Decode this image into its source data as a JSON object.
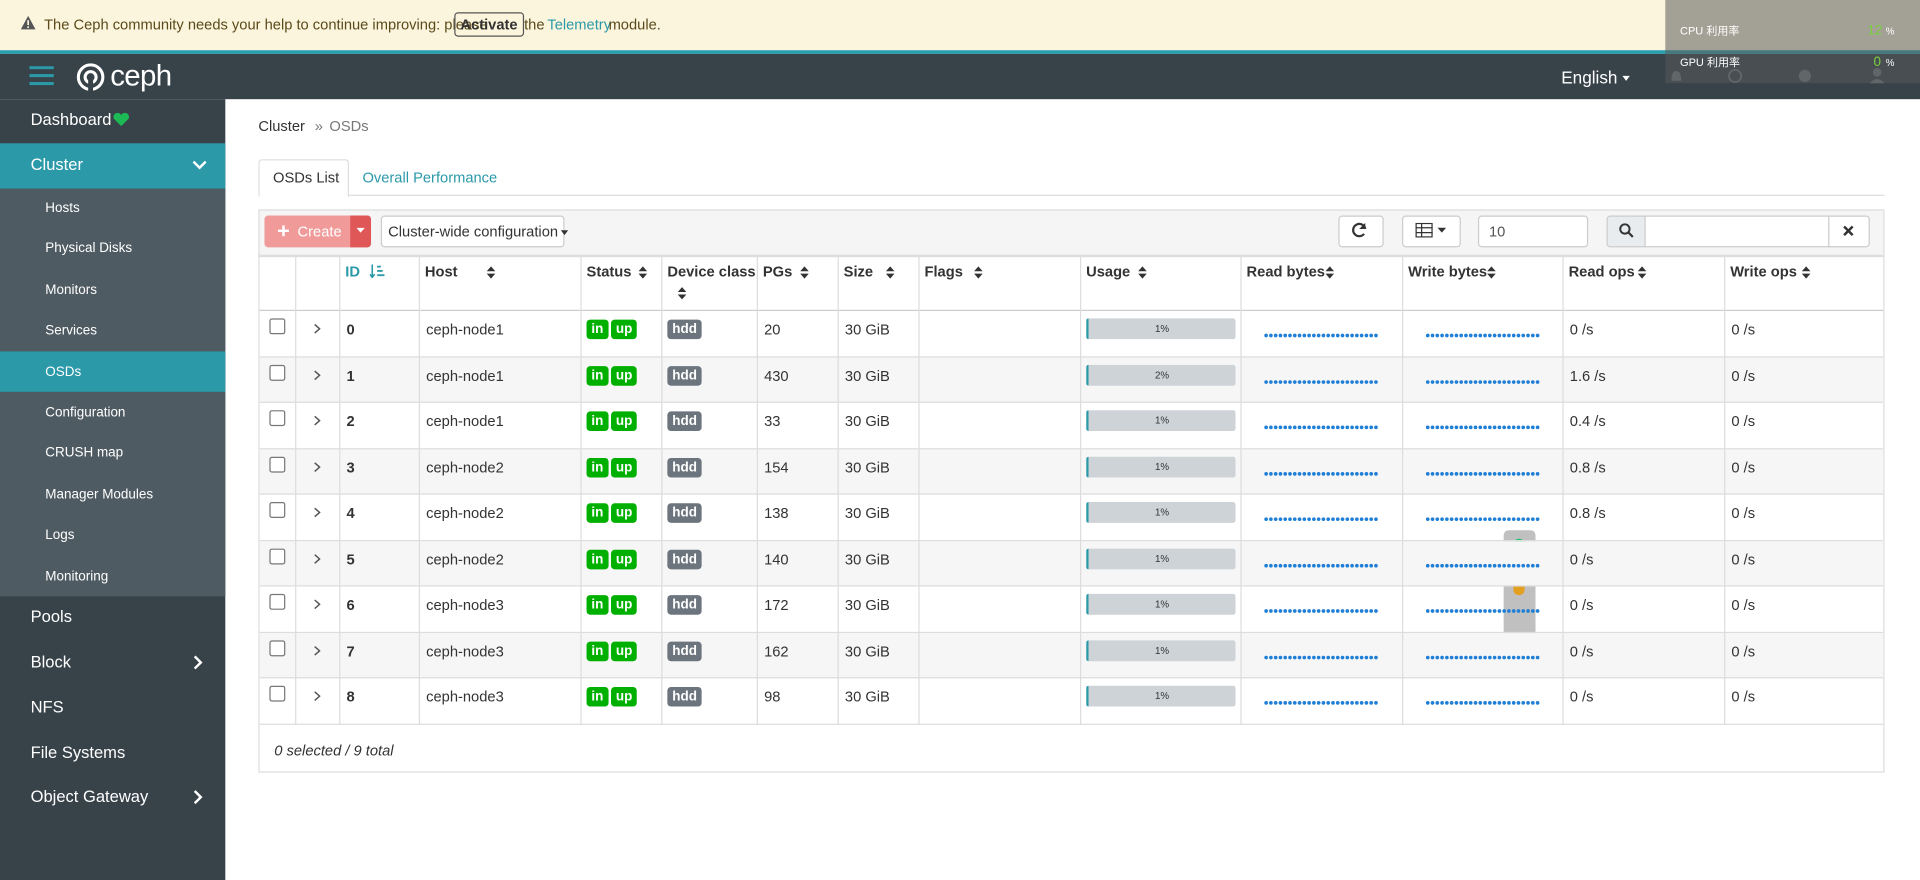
{
  "banner": {
    "text_before": "The Ceph community needs your help to continue improving: please",
    "button": "Activate",
    "text_middle": "the",
    "link": "Telemetry",
    "text_after": "module."
  },
  "overlay": {
    "cpu_label": "CPU 利用率",
    "cpu_value": "12",
    "cpu_unit": "%",
    "gpu_label": "GPU 利用率",
    "gpu_value": "0",
    "gpu_unit": "%"
  },
  "navbar": {
    "logo": "ceph",
    "language": "English"
  },
  "sidebar": {
    "top": [
      "Dashboard",
      "Cluster"
    ],
    "cluster_children": [
      "Hosts",
      "Physical Disks",
      "Monitors",
      "Services",
      "OSDs",
      "Configuration",
      "CRUSH map",
      "Manager Modules",
      "Logs",
      "Monitoring"
    ],
    "bottom": [
      "Pools",
      "Block",
      "NFS",
      "File Systems",
      "Object Gateway"
    ]
  },
  "breadcrumb": {
    "items": [
      "Cluster",
      "OSDs"
    ],
    "separator": "»"
  },
  "tabs": [
    "OSDs List",
    "Overall Performance"
  ],
  "toolbar": {
    "create": "Create",
    "config": "Cluster-wide configuration",
    "page_size": "10"
  },
  "table": {
    "columns": [
      "ID",
      "Host",
      "Status",
      "Device class",
      "PGs",
      "Size",
      "Flags",
      "Usage",
      "Read bytes",
      "Write bytes",
      "Read ops",
      "Write ops"
    ],
    "rows": [
      {
        "id": 0,
        "host": "ceph-node1",
        "in": "in",
        "up": "up",
        "device_class": "hdd",
        "pgs": 20,
        "size": "30 GiB",
        "usage": "1%",
        "read_ops": "0 /s",
        "write_ops": "0 /s"
      },
      {
        "id": 1,
        "host": "ceph-node1",
        "in": "in",
        "up": "up",
        "device_class": "hdd",
        "pgs": 430,
        "size": "30 GiB",
        "usage": "2%",
        "read_ops": "1.6 /s",
        "write_ops": "0 /s"
      },
      {
        "id": 2,
        "host": "ceph-node1",
        "in": "in",
        "up": "up",
        "device_class": "hdd",
        "pgs": 33,
        "size": "30 GiB",
        "usage": "1%",
        "read_ops": "0.4 /s",
        "write_ops": "0 /s"
      },
      {
        "id": 3,
        "host": "ceph-node2",
        "in": "in",
        "up": "up",
        "device_class": "hdd",
        "pgs": 154,
        "size": "30 GiB",
        "usage": "1%",
        "read_ops": "0.8 /s",
        "write_ops": "0 /s"
      },
      {
        "id": 4,
        "host": "ceph-node2",
        "in": "in",
        "up": "up",
        "device_class": "hdd",
        "pgs": 138,
        "size": "30 GiB",
        "usage": "1%",
        "read_ops": "0.8 /s",
        "write_ops": "0 /s"
      },
      {
        "id": 5,
        "host": "ceph-node2",
        "in": "in",
        "up": "up",
        "device_class": "hdd",
        "pgs": 140,
        "size": "30 GiB",
        "usage": "1%",
        "read_ops": "0 /s",
        "write_ops": "0 /s"
      },
      {
        "id": 6,
        "host": "ceph-node3",
        "in": "in",
        "up": "up",
        "device_class": "hdd",
        "pgs": 172,
        "size": "30 GiB",
        "usage": "1%",
        "read_ops": "0 /s",
        "write_ops": "0 /s"
      },
      {
        "id": 7,
        "host": "ceph-node3",
        "in": "in",
        "up": "up",
        "device_class": "hdd",
        "pgs": 162,
        "size": "30 GiB",
        "usage": "1%",
        "read_ops": "0 /s",
        "write_ops": "0 /s"
      },
      {
        "id": 8,
        "host": "ceph-node3",
        "in": "in",
        "up": "up",
        "device_class": "hdd",
        "pgs": 98,
        "size": "30 GiB",
        "usage": "1%",
        "read_ops": "0 /s",
        "write_ops": "0 /s"
      }
    ],
    "footer": "0 selected / 9 total"
  }
}
